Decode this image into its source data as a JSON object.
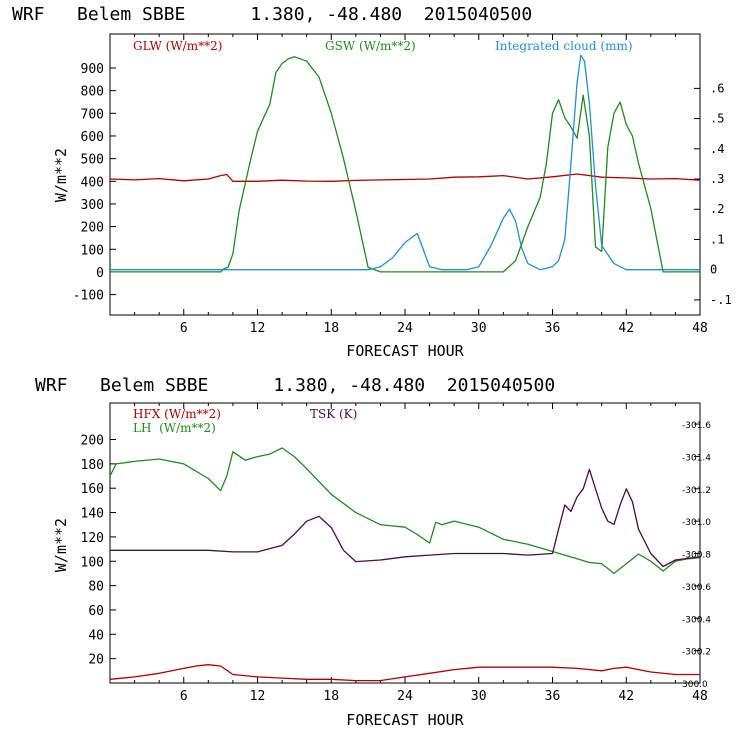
{
  "colors": {
    "red": "#b00000",
    "green": "#1f8a1f",
    "blue": "#1f8fd6",
    "purple": "#4b0a4b",
    "axis": "#000000"
  },
  "chart_data": [
    {
      "type": "line",
      "title": "WRF   Belem SBBE      1.380, -48.480  2015040500",
      "xlabel": "FORECAST HOUR",
      "ylabel": "W/m**2",
      "xlim": [
        0,
        48
      ],
      "ylim": [
        -190,
        1050
      ],
      "ylim_right": [
        -0.15,
        0.78
      ],
      "x_ticks": [
        6,
        12,
        18,
        24,
        30,
        36,
        42,
        48
      ],
      "y_ticks": [
        -100,
        0,
        100,
        200,
        300,
        400,
        500,
        600,
        700,
        800,
        900
      ],
      "y_ticks_right": [
        -0.1,
        0,
        0.1,
        0.2,
        0.3,
        0.4,
        0.5,
        0.6
      ],
      "y_ticks_right_labels": [
        "-.1",
        "0",
        ".1",
        ".2",
        ".3",
        ".4",
        ".5",
        ".6"
      ],
      "legend": [
        "GLW (W/m**2)",
        "GSW (W/m**2)",
        "Integrated cloud (mm)"
      ],
      "series": [
        {
          "name": "GLW (W/m**2)",
          "color": "red",
          "axis": "left",
          "x": [
            0,
            2,
            4,
            6,
            8,
            9,
            9.5,
            10,
            12,
            14,
            16,
            18,
            20,
            22,
            24,
            26,
            28,
            30,
            32,
            34,
            36,
            38,
            40,
            42,
            44,
            46,
            48
          ],
          "y": [
            410,
            406,
            412,
            402,
            410,
            425,
            430,
            400,
            400,
            405,
            401,
            400,
            404,
            406,
            408,
            410,
            418,
            420,
            425,
            410,
            420,
            432,
            418,
            415,
            410,
            412,
            405
          ]
        },
        {
          "name": "GSW (W/m**2)",
          "color": "green",
          "axis": "left",
          "x": [
            0,
            9,
            9.3,
            9.6,
            10,
            10.5,
            11,
            11.5,
            12,
            12.5,
            13,
            13.5,
            14,
            14.5,
            15,
            16,
            17,
            18,
            19,
            20,
            21,
            22,
            24,
            26,
            28,
            30,
            31,
            32,
            33,
            34,
            35,
            35.5,
            36,
            36.5,
            37,
            37.5,
            38,
            38.5,
            39,
            39.5,
            40,
            40.5,
            41,
            41.5,
            42,
            42.5,
            43,
            44,
            45,
            46,
            48
          ],
          "y": [
            0,
            0,
            15,
            20,
            80,
            270,
            390,
            510,
            620,
            680,
            740,
            880,
            920,
            940,
            950,
            930,
            860,
            700,
            500,
            270,
            20,
            0,
            0,
            0,
            0,
            0,
            0,
            0,
            50,
            200,
            330,
            480,
            700,
            760,
            680,
            640,
            590,
            780,
            600,
            110,
            90,
            550,
            700,
            750,
            650,
            600,
            480,
            280,
            0,
            0,
            0
          ]
        },
        {
          "name": "Integrated cloud (mm)",
          "color": "blue",
          "axis": "right",
          "x": [
            0,
            20,
            21,
            22,
            23,
            24,
            25,
            26,
            27,
            28,
            29,
            30,
            31,
            32,
            32.5,
            33,
            33.5,
            34,
            35,
            36,
            36.5,
            37,
            37.5,
            38,
            38.3,
            38.6,
            39,
            39.5,
            40,
            41,
            42,
            43,
            44,
            48
          ],
          "y": [
            0,
            0,
            0,
            0.01,
            0.04,
            0.09,
            0.12,
            0.01,
            0,
            0,
            0,
            0.01,
            0.08,
            0.17,
            0.2,
            0.16,
            0.07,
            0.02,
            0,
            0.01,
            0.03,
            0.1,
            0.35,
            0.62,
            0.71,
            0.69,
            0.55,
            0.28,
            0.08,
            0.02,
            0,
            0,
            0,
            0
          ]
        }
      ]
    },
    {
      "type": "line",
      "title": "WRF   Belem SBBE      1.380, -48.480  2015040500",
      "xlabel": "FORECAST HOUR",
      "ylabel": "W/m**2",
      "xlim": [
        0,
        48
      ],
      "ylim": [
        0,
        230
      ],
      "ylim_right": [
        300.0,
        301.73
      ],
      "x_ticks": [
        6,
        12,
        18,
        24,
        30,
        36,
        42,
        48
      ],
      "y_ticks": [
        20,
        40,
        60,
        80,
        100,
        120,
        140,
        160,
        180,
        200
      ],
      "y_ticks_right": [
        300.0,
        300.2,
        300.4,
        300.6,
        300.8,
        301.0,
        301.2,
        301.4,
        301.6
      ],
      "y_ticks_right_labels": [
        "300.0",
        "-300.2",
        "-300.4",
        "-300.6",
        "-300.8",
        "-301.0",
        "-301.2",
        "-301.4",
        "-301.6"
      ],
      "legend": [
        "HFX (W/m**2)",
        "LH  (W/m**2)",
        "TSK (K)"
      ],
      "series": [
        {
          "name": "HFX (W/m**2)",
          "color": "red",
          "axis": "left",
          "x": [
            0,
            2,
            4,
            6,
            7,
            8,
            9,
            10,
            12,
            14,
            16,
            18,
            20,
            22,
            24,
            26,
            28,
            30,
            32,
            34,
            36,
            38,
            40,
            41,
            42,
            43,
            44,
            46,
            48
          ],
          "y": [
            3,
            5,
            8,
            12,
            14,
            15,
            14,
            7,
            5,
            4,
            3,
            3,
            2,
            2,
            5,
            8,
            11,
            13,
            13,
            13,
            13,
            12,
            10,
            12,
            13,
            11,
            9,
            7,
            7
          ]
        },
        {
          "name": "LH  (W/m**2)",
          "color": "green",
          "axis": "left",
          "x": [
            0,
            0.5,
            2,
            4,
            6,
            8,
            9,
            9.5,
            10,
            11,
            12,
            13,
            14,
            15,
            16,
            18,
            20,
            22,
            24,
            25,
            26,
            26.5,
            27,
            28,
            30,
            32,
            34,
            36,
            38,
            39,
            40,
            41,
            42,
            43,
            44,
            45,
            46,
            47,
            48
          ],
          "y": [
            170,
            180,
            182,
            184,
            180,
            168,
            158,
            170,
            190,
            183,
            186,
            188,
            193,
            186,
            176,
            155,
            140,
            130,
            128,
            122,
            115,
            132,
            130,
            133,
            128,
            118,
            114,
            108,
            102,
            99,
            98,
            90,
            98,
            106,
            100,
            92,
            100,
            102,
            103
          ]
        },
        {
          "name": "TSK (K)",
          "color": "purple",
          "axis": "right",
          "x": [
            0,
            2,
            4,
            6,
            8,
            10,
            12,
            14,
            15,
            16,
            17,
            18,
            19,
            20,
            22,
            24,
            26,
            28,
            30,
            32,
            34,
            36,
            36.5,
            37,
            37.5,
            38,
            38.5,
            39,
            39.5,
            40,
            40.5,
            41,
            41.5,
            42,
            42.5,
            43,
            44,
            45,
            46,
            48
          ],
          "y": [
            300.82,
            300.82,
            300.82,
            300.82,
            300.82,
            300.81,
            300.81,
            300.85,
            300.92,
            301.0,
            301.03,
            300.96,
            300.82,
            300.75,
            300.76,
            300.78,
            300.79,
            300.8,
            300.8,
            300.8,
            300.79,
            300.8,
            300.95,
            301.1,
            301.06,
            301.15,
            301.2,
            301.32,
            301.2,
            301.08,
            301.0,
            300.98,
            301.1,
            301.2,
            301.12,
            300.95,
            300.8,
            300.72,
            300.76,
            300.78
          ]
        }
      ]
    }
  ]
}
